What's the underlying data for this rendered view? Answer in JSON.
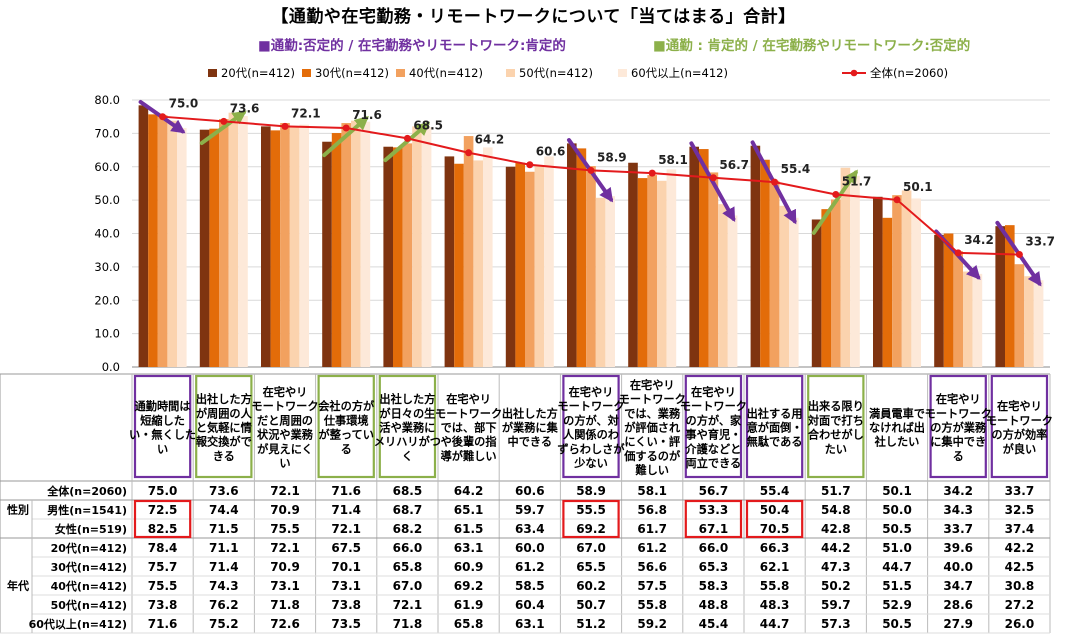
{
  "header": {
    "title": "【通勤や在宅勤務・リモートワークについて「当てはまる」合計】",
    "legend_negative_commute": "■通勤:否定的 / 在宅勤務やリモートワーク:肯定的",
    "legend_positive_commute": "■通勤 : 肯定的 / 在宅勤務やリモートワーク:否定的"
  },
  "colors": {
    "series": [
      "#7F3410",
      "#E36C09",
      "#F2A15F",
      "#FBD3AE",
      "#FDE9D9"
    ],
    "total_line": "#E31A1C",
    "purple": "#7030A0",
    "green": "#8CB04A",
    "red_box": "#E31A1C",
    "grid": "#D9D9D9"
  },
  "chart_data": {
    "type": "bar",
    "ylim": [
      0,
      80
    ],
    "yticks": [
      "0.0",
      "10.0",
      "20.0",
      "30.0",
      "40.0",
      "50.0",
      "60.0",
      "70.0",
      "80.0"
    ],
    "grid": true,
    "legend_position": "top",
    "categories": [
      "通勤時間は短縮したい・無くしたい",
      "出社した方が周囲の人と気軽に情報交換ができる",
      "在宅やリモートワークだと周囲の状況や業務が見えにくい",
      "会社の方が仕事環境が整っている",
      "出社した方が日々の生活や業務にメリハリがつく",
      "在宅やリモートワークでは、部下や後輩の指導が難しい",
      "出社した方が業務に集中できる",
      "在宅やリモートワークの方が、対人関係のわずらわしさが少ない",
      "在宅やリモートワークでは、業務が評価されにくい・評価するのが難しい",
      "在宅やリモートワークの方が、家事や育児・介護などと両立できる",
      "出社する用意が面倒・無駄である",
      "出来る限り対面で打ち合わせがしたい",
      "満員電車でなければ出社したい",
      "在宅やリモートワークの方が業務に集中できる",
      "在宅やリモートワークの方が効率が良い"
    ],
    "category_lines": [
      [
        "通勤時間は",
        "短縮した",
        "い・無くした",
        "い"
      ],
      [
        "出社した方",
        "が周囲の人",
        "と気軽に情",
        "報交換がで",
        "きる"
      ],
      [
        "在宅やリ",
        "モートワーク",
        "だと周囲の",
        "状況や業務",
        "が見えにく",
        "い"
      ],
      [
        "会社の方が",
        "仕事環境",
        "が整ってい",
        "る"
      ],
      [
        "出社した方",
        "が日々の生",
        "活や業務に",
        "メリハリがつ",
        "く"
      ],
      [
        "在宅やリ",
        "モートワーク",
        "では、部下",
        "や後輩の指",
        "導が難しい"
      ],
      [
        "出社した方",
        "が業務に集",
        "中できる"
      ],
      [
        "在宅やリ",
        "モートワーク",
        "の方が、対",
        "人関係のわ",
        "ずらわしさが",
        "少ない"
      ],
      [
        "在宅やリ",
        "モートワーク",
        "では、業務",
        "が評価され",
        "にくい・評",
        "価するのが",
        "難しい"
      ],
      [
        "在宅やリ",
        "モートワーク",
        "の方が、家",
        "事や育児・",
        "介護などと",
        "両立できる"
      ],
      [
        "出社する用",
        "意が面倒・",
        "無駄である"
      ],
      [
        "出来る限り",
        "対面で打ち",
        "合わせがし",
        "たい"
      ],
      [
        "満員電車で",
        "なければ出",
        "社したい"
      ],
      [
        "在宅やリ",
        "モートワーク",
        "の方が業務",
        "に集中でき",
        "る"
      ],
      [
        "在宅やリ",
        "モートワーク",
        "の方が効率",
        "が良い"
      ]
    ],
    "category_group": [
      "purple",
      "green",
      "none",
      "green",
      "green",
      "none",
      "none",
      "purple",
      "none",
      "purple",
      "purple",
      "green",
      "none",
      "purple",
      "purple"
    ],
    "arrow_direction": [
      "down",
      "up",
      "none",
      "up",
      "up",
      "none",
      "none",
      "down",
      "none",
      "down",
      "down",
      "up",
      "none",
      "down",
      "down"
    ],
    "series": [
      {
        "name": "20代(n=412)",
        "values": [
          78.4,
          71.1,
          72.1,
          67.5,
          66.0,
          63.1,
          60.0,
          67.0,
          61.2,
          66.0,
          66.3,
          44.2,
          51.0,
          39.6,
          42.2
        ]
      },
      {
        "name": "30代(n=412)",
        "values": [
          75.7,
          71.4,
          70.9,
          70.1,
          65.8,
          60.9,
          61.2,
          65.5,
          56.6,
          65.3,
          62.1,
          47.3,
          44.7,
          40.0,
          42.5
        ]
      },
      {
        "name": "40代(n=412)",
        "values": [
          75.5,
          74.3,
          73.1,
          73.1,
          67.0,
          69.2,
          58.5,
          60.2,
          57.5,
          58.3,
          55.8,
          50.2,
          51.5,
          34.7,
          30.8
        ]
      },
      {
        "name": "50代(n=412)",
        "values": [
          73.8,
          76.2,
          71.8,
          73.8,
          72.1,
          61.9,
          60.4,
          50.7,
          55.8,
          48.8,
          48.3,
          59.7,
          52.9,
          28.6,
          27.2
        ]
      },
      {
        "name": "60代以上(n=412)",
        "values": [
          71.6,
          75.2,
          72.6,
          73.5,
          71.8,
          65.8,
          63.1,
          51.2,
          59.2,
          45.4,
          44.7,
          57.3,
          50.5,
          27.9,
          26.0
        ]
      }
    ],
    "total": {
      "name": "全体(n=2060)",
      "values": [
        75.0,
        73.6,
        72.1,
        71.6,
        68.5,
        64.2,
        60.6,
        58.9,
        58.1,
        56.7,
        55.4,
        51.7,
        50.1,
        34.2,
        33.7
      ]
    },
    "total_labels": [
      "75.0",
      "73.6",
      "72.1",
      "71.6",
      "68.5",
      "64.2",
      "60.6",
      "58.9",
      "58.1",
      "56.7",
      "55.4",
      "51.7",
      "50.1",
      "34.2",
      "33.7"
    ]
  },
  "table": {
    "rows": [
      {
        "group": "",
        "label": "全体(n=2060)",
        "values": [
          "75.0",
          "73.6",
          "72.1",
          "71.6",
          "68.5",
          "64.2",
          "60.6",
          "58.9",
          "58.1",
          "56.7",
          "55.4",
          "51.7",
          "50.1",
          "34.2",
          "33.7"
        ]
      },
      {
        "group": "性別",
        "label": "男性(n=1541)",
        "values": [
          "72.5",
          "74.4",
          "70.9",
          "71.4",
          "68.7",
          "65.1",
          "59.7",
          "55.5",
          "56.8",
          "53.3",
          "50.4",
          "54.8",
          "50.0",
          "34.3",
          "32.5"
        ]
      },
      {
        "group": "",
        "label": "女性(n=519)",
        "values": [
          "82.5",
          "71.5",
          "75.5",
          "72.1",
          "68.2",
          "61.5",
          "63.4",
          "69.2",
          "61.7",
          "67.1",
          "70.5",
          "42.8",
          "50.5",
          "33.7",
          "37.4"
        ]
      },
      {
        "group": "年代",
        "label": "20代(n=412)",
        "values": [
          "78.4",
          "71.1",
          "72.1",
          "67.5",
          "66.0",
          "63.1",
          "60.0",
          "67.0",
          "61.2",
          "66.0",
          "66.3",
          "44.2",
          "51.0",
          "39.6",
          "42.2"
        ]
      },
      {
        "group": "",
        "label": "30代(n=412)",
        "values": [
          "75.7",
          "71.4",
          "70.9",
          "70.1",
          "65.8",
          "60.9",
          "61.2",
          "65.5",
          "56.6",
          "65.3",
          "62.1",
          "47.3",
          "44.7",
          "40.0",
          "42.5"
        ]
      },
      {
        "group": "",
        "label": "40代(n=412)",
        "values": [
          "75.5",
          "74.3",
          "73.1",
          "73.1",
          "67.0",
          "69.2",
          "58.5",
          "60.2",
          "57.5",
          "58.3",
          "55.8",
          "50.2",
          "51.5",
          "34.7",
          "30.8"
        ]
      },
      {
        "group": "",
        "label": "50代(n=412)",
        "values": [
          "73.8",
          "76.2",
          "71.8",
          "73.8",
          "72.1",
          "61.9",
          "60.4",
          "50.7",
          "55.8",
          "48.8",
          "48.3",
          "59.7",
          "52.9",
          "28.6",
          "27.2"
        ]
      },
      {
        "group": "",
        "label": "60代以上(n=412)",
        "values": [
          "71.6",
          "75.2",
          "72.6",
          "73.5",
          "71.8",
          "65.8",
          "63.1",
          "51.2",
          "59.2",
          "45.4",
          "44.7",
          "57.3",
          "50.5",
          "27.9",
          "26.0"
        ]
      }
    ],
    "highlights": [
      {
        "column": 0,
        "rows": [
          1,
          2
        ]
      },
      {
        "column": 7,
        "rows": [
          1,
          2
        ]
      },
      {
        "column": 9,
        "rows": [
          1,
          2
        ]
      },
      {
        "column": 10,
        "rows": [
          1,
          2
        ]
      }
    ]
  }
}
